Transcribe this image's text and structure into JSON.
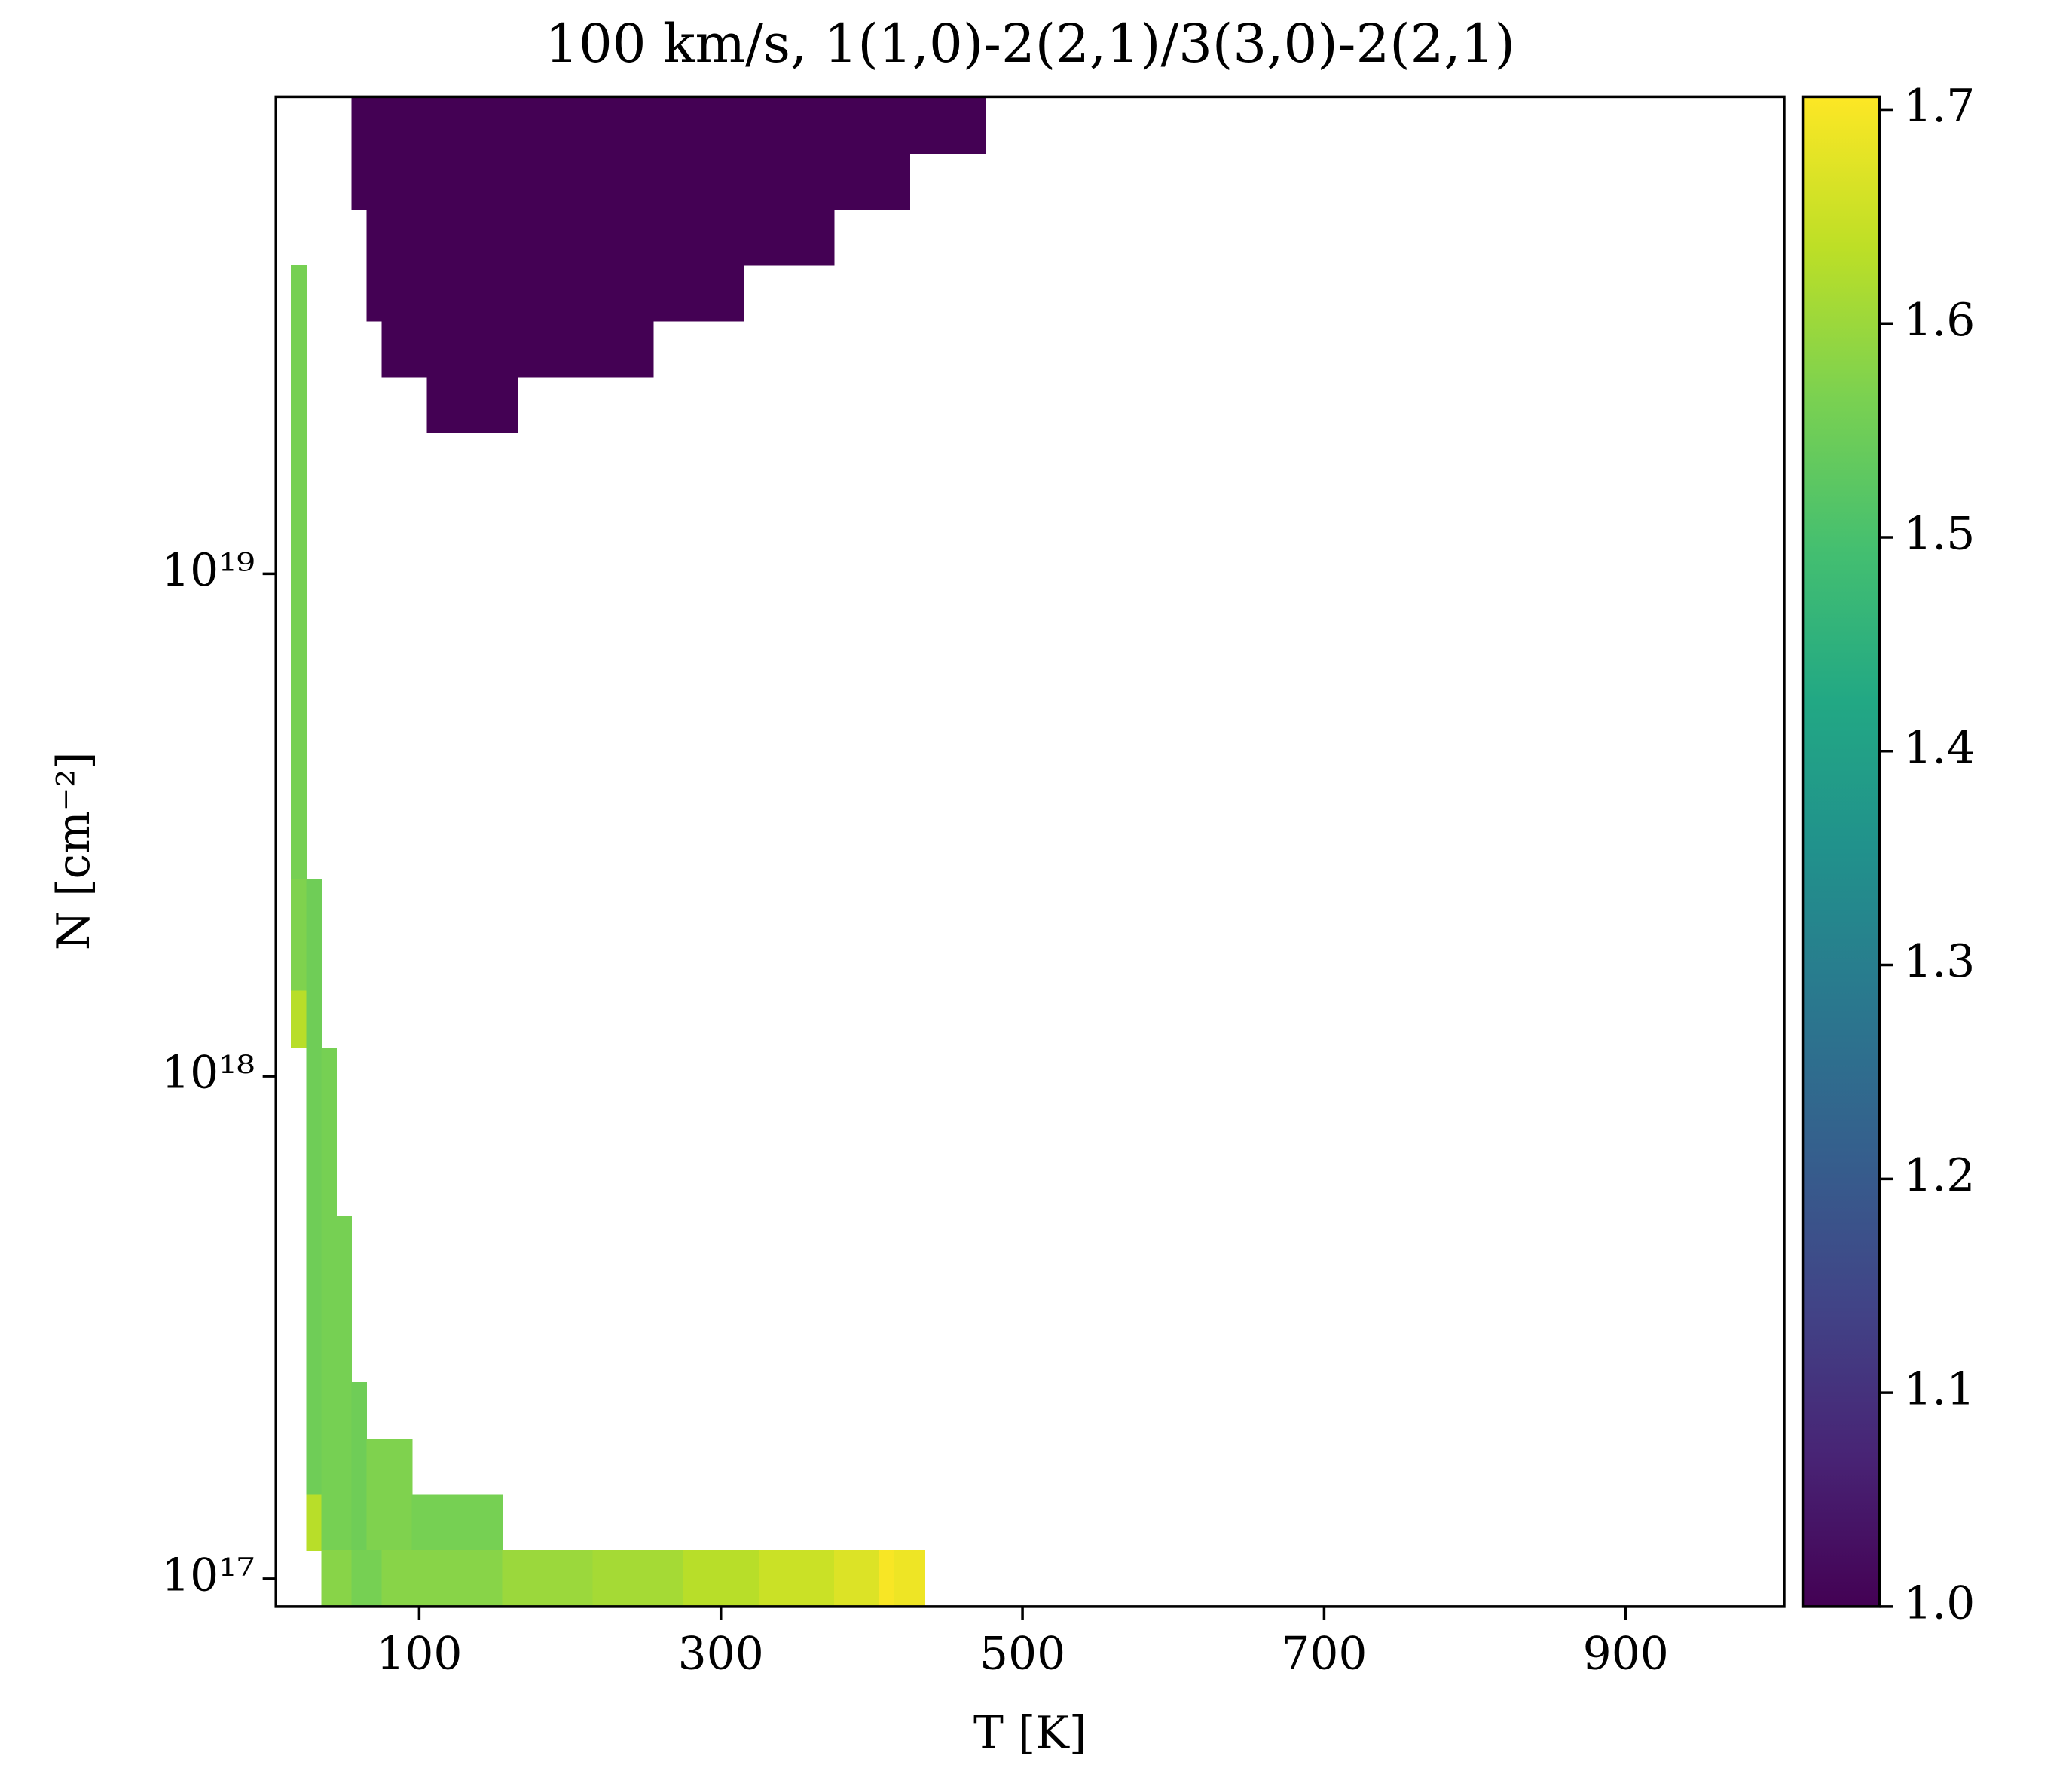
{
  "chart_data": {
    "type": "heatmap",
    "title": "100 km/s, 1(1,0)-2(2,1)/3(3,0)-2(2,1)",
    "xlabel": "T [K]",
    "ylabel": "N [cm⁻²]",
    "xlim": [
      5,
      1005
    ],
    "xticks": [
      100,
      300,
      500,
      700,
      900
    ],
    "ylim": [
      8.8e+16,
      8.9e+19
    ],
    "yscale": "log",
    "yticks": [
      {
        "value": 1e+17,
        "label": "10¹⁷"
      },
      {
        "value": 1e+18,
        "label": "10¹⁸"
      },
      {
        "value": 1e+19,
        "label": "10¹⁹"
      }
    ],
    "colormap": "viridis",
    "clim": [
      1.0,
      1.706
    ],
    "cticks": [
      {
        "value": 1.0,
        "label": "1.0"
      },
      {
        "value": 1.1,
        "label": "1.1"
      },
      {
        "value": 1.2,
        "label": "1.2"
      },
      {
        "value": 1.3,
        "label": "1.3"
      },
      {
        "value": 1.4,
        "label": "1.4"
      },
      {
        "value": 1.5,
        "label": "1.5"
      },
      {
        "value": 1.6,
        "label": "1.6"
      },
      {
        "value": 1.7,
        "label": "1.7"
      }
    ],
    "cells": [
      {
        "x": [
          55,
          475
        ],
        "y": [
          6.86e+19,
          8.9e+19
        ],
        "value": 1.0
      },
      {
        "x": [
          55,
          425
        ],
        "y": [
          5.32e+19,
          6.86e+19
        ],
        "value": 1.0
      },
      {
        "x": [
          65,
          375
        ],
        "y": [
          4.12e+19,
          5.32e+19
        ],
        "value": 1.0
      },
      {
        "x": [
          65,
          315
        ],
        "y": [
          3.19e+19,
          4.12e+19
        ],
        "value": 1.0
      },
      {
        "x": [
          75,
          255
        ],
        "y": [
          2.47e+19,
          3.19e+19
        ],
        "value": 1.0
      },
      {
        "x": [
          105,
          165
        ],
        "y": [
          1.91e+19,
          2.47e+19
        ],
        "value": 1.0
      },
      {
        "x": [
          15,
          25
        ],
        "y": [
          2.47e+18,
          4.12e+19
        ],
        "value": 1.56
      },
      {
        "x": [
          15,
          25
        ],
        "y": [
          1.48e+18,
          2.47e+18
        ],
        "value": 1.57
      },
      {
        "x": [
          15,
          25
        ],
        "y": [
          1.14e+18,
          1.48e+18
        ],
        "value": 1.63
      },
      {
        "x": [
          25,
          35
        ],
        "y": [
          1.47e+17,
          2.47e+18
        ],
        "value": 1.55
      },
      {
        "x": [
          25,
          35
        ],
        "y": [
          1.14e+17,
          1.47e+17
        ],
        "value": 1.63
      },
      {
        "x": [
          35,
          45
        ],
        "y": [
          1.14e+17,
          1.14e+18
        ],
        "value": 1.56
      },
      {
        "x": [
          45,
          55
        ],
        "y": [
          1.14e+17,
          5.28e+17
        ],
        "value": 1.56
      },
      {
        "x": [
          55,
          65
        ],
        "y": [
          1.14e+17,
          2.46e+17
        ],
        "value": 1.55
      },
      {
        "x": [
          65,
          95
        ],
        "y": [
          1.14e+17,
          1.9e+17
        ],
        "value": 1.57
      },
      {
        "x": [
          95,
          155
        ],
        "y": [
          1.14e+17,
          1.47e+17
        ],
        "value": 1.56
      },
      {
        "x": [
          35,
          55
        ],
        "y": [
          8.8e+16,
          1.14e+17
        ],
        "value": 1.58
      },
      {
        "x": [
          55,
          75
        ],
        "y": [
          8.8e+16,
          1.14e+17
        ],
        "value": 1.56
      },
      {
        "x": [
          75,
          155
        ],
        "y": [
          8.8e+16,
          1.14e+17
        ],
        "value": 1.58
      },
      {
        "x": [
          155,
          215
        ],
        "y": [
          8.8e+16,
          1.14e+17
        ],
        "value": 1.6
      },
      {
        "x": [
          215,
          275
        ],
        "y": [
          8.8e+16,
          1.14e+17
        ],
        "value": 1.61
      },
      {
        "x": [
          275,
          325
        ],
        "y": [
          8.8e+16,
          1.14e+17
        ],
        "value": 1.63
      },
      {
        "x": [
          325,
          375
        ],
        "y": [
          8.8e+16,
          1.14e+17
        ],
        "value": 1.65
      },
      {
        "x": [
          375,
          405
        ],
        "y": [
          8.8e+16,
          1.14e+17
        ],
        "value": 1.67
      },
      {
        "x": [
          405,
          415
        ],
        "y": [
          8.8e+16,
          1.14e+17
        ],
        "value": 1.7
      },
      {
        "x": [
          415,
          435
        ],
        "y": [
          8.8e+16,
          1.14e+17
        ],
        "value": 1.69
      }
    ]
  }
}
